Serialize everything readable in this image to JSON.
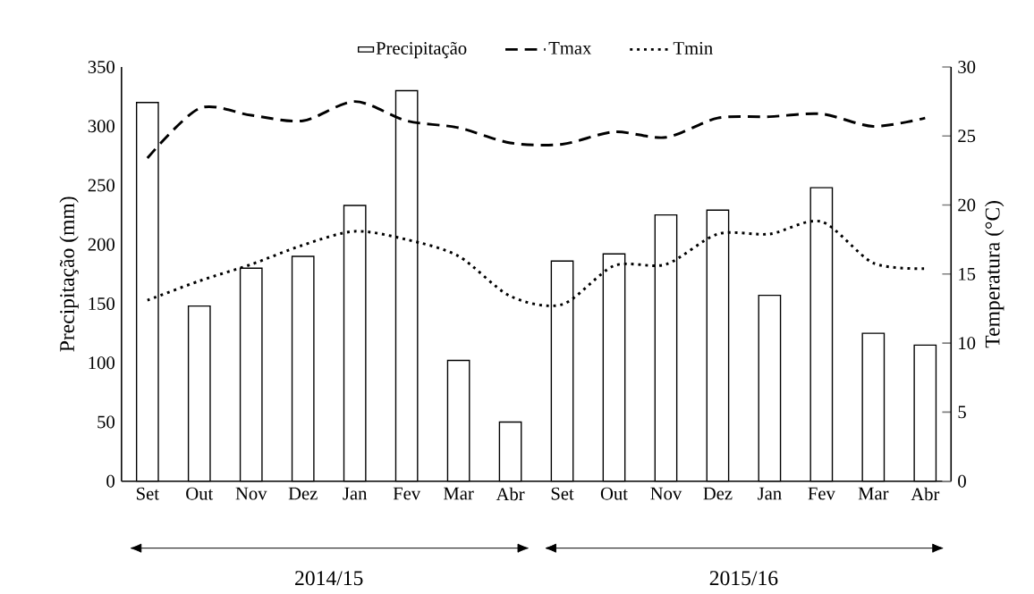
{
  "chart_data": {
    "type": "bar",
    "categories": [
      "Set",
      "Out",
      "Nov",
      "Dez",
      "Jan",
      "Fev",
      "Mar",
      "Abr",
      "Set",
      "Out",
      "Nov",
      "Dez",
      "Jan",
      "Fev",
      "Mar",
      "Abr"
    ],
    "ylabel": "Precipitação (mm)",
    "y2label": "Temperatura (°C)",
    "ylim": [
      0,
      350
    ],
    "yticks": [
      0,
      50,
      100,
      150,
      200,
      250,
      300,
      350
    ],
    "y2lim": [
      0,
      30
    ],
    "y2ticks": [
      0,
      5,
      10,
      15,
      20,
      25,
      30
    ],
    "series": [
      {
        "name": "Precipitação",
        "color": "#000000",
        "values": [
          320,
          148,
          180,
          190,
          233,
          330,
          102,
          50,
          186,
          192,
          225,
          229,
          157,
          248,
          125,
          115
        ]
      },
      {
        "name": "Tmax",
        "type": "line",
        "axis": "y2",
        "line_style": "dashed",
        "color": "#000000",
        "values": [
          23.4,
          27.0,
          26.5,
          26.1,
          27.5,
          26.1,
          25.6,
          24.5,
          24.4,
          25.3,
          24.9,
          26.3,
          26.4,
          26.6,
          25.7,
          26.3
        ]
      },
      {
        "name": "Tmin",
        "type": "line",
        "axis": "y2",
        "line_style": "dotted",
        "color": "#000000",
        "values": [
          13.1,
          14.5,
          15.7,
          17.1,
          18.1,
          17.5,
          16.3,
          13.4,
          12.8,
          15.6,
          15.7,
          17.9,
          17.9,
          18.8,
          15.8,
          15.4
        ]
      }
    ],
    "legend": "top",
    "annotations": [
      "2014/15",
      "2015/16"
    ]
  }
}
